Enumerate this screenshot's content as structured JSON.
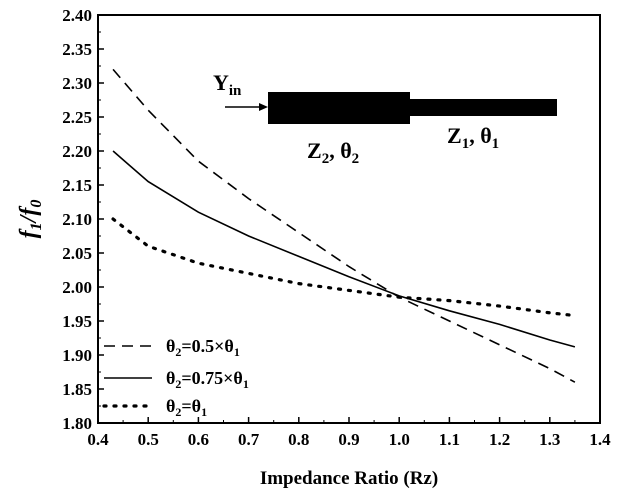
{
  "chart_data": {
    "type": "line",
    "title": "",
    "xlabel": "Impedance Ratio (Rz)",
    "ylabel": {
      "main": "f",
      "sub1": "1",
      "slash": "/",
      "main2": "f",
      "sub2": "0"
    },
    "xlim": [
      0.4,
      1.4
    ],
    "ylim": [
      1.8,
      2.4
    ],
    "xticks": [
      "0.4",
      "0.5",
      "0.6",
      "0.7",
      "0.8",
      "0.9",
      "1.0",
      "1.1",
      "1.2",
      "1.3",
      "1.4"
    ],
    "yticks": [
      "1.80",
      "1.85",
      "1.90",
      "1.95",
      "2.00",
      "2.05",
      "2.10",
      "2.15",
      "2.20",
      "2.25",
      "2.30",
      "2.35",
      "2.40"
    ],
    "grid": false,
    "legend_position": "bottom-left",
    "series": [
      {
        "name": "θ2=0.5×θ1",
        "label_parts": {
          "pre": "θ",
          "sub": "2",
          "mid": "=0.5×θ",
          "sub2": "1"
        },
        "style": "dashed",
        "x": [
          0.43,
          0.5,
          0.6,
          0.7,
          0.8,
          0.9,
          1.0,
          1.1,
          1.2,
          1.3,
          1.35
        ],
        "y": [
          2.32,
          2.26,
          2.185,
          2.13,
          2.08,
          2.03,
          1.985,
          1.95,
          1.915,
          1.88,
          1.86
        ]
      },
      {
        "name": "θ2=0.75×θ1",
        "label_parts": {
          "pre": "θ",
          "sub": "2",
          "mid": "=0.75×θ",
          "sub2": "1"
        },
        "style": "solid",
        "x": [
          0.43,
          0.5,
          0.6,
          0.7,
          0.8,
          0.9,
          1.0,
          1.1,
          1.2,
          1.3,
          1.35
        ],
        "y": [
          2.2,
          2.155,
          2.11,
          2.075,
          2.045,
          2.015,
          1.987,
          1.965,
          1.945,
          1.922,
          1.912
        ]
      },
      {
        "name": "θ2=θ1",
        "label_parts": {
          "pre": "θ",
          "sub": "2",
          "mid": "=θ",
          "sub2": "1"
        },
        "style": "dotted",
        "x": [
          0.43,
          0.5,
          0.6,
          0.7,
          0.8,
          0.9,
          1.0,
          1.1,
          1.2,
          1.3,
          1.35
        ],
        "y": [
          2.1,
          2.06,
          2.035,
          2.02,
          2.005,
          1.995,
          1.985,
          1.98,
          1.972,
          1.962,
          1.958
        ]
      }
    ],
    "inset": {
      "input_label": {
        "main": "Y",
        "sub": "in"
      },
      "z2_label": {
        "z": "Z",
        "zsub": "2",
        "t": ", θ",
        "tsub": "2"
      },
      "z1_label": {
        "z": "Z",
        "zsub": "1",
        "t": ", θ",
        "tsub": "1"
      }
    }
  }
}
